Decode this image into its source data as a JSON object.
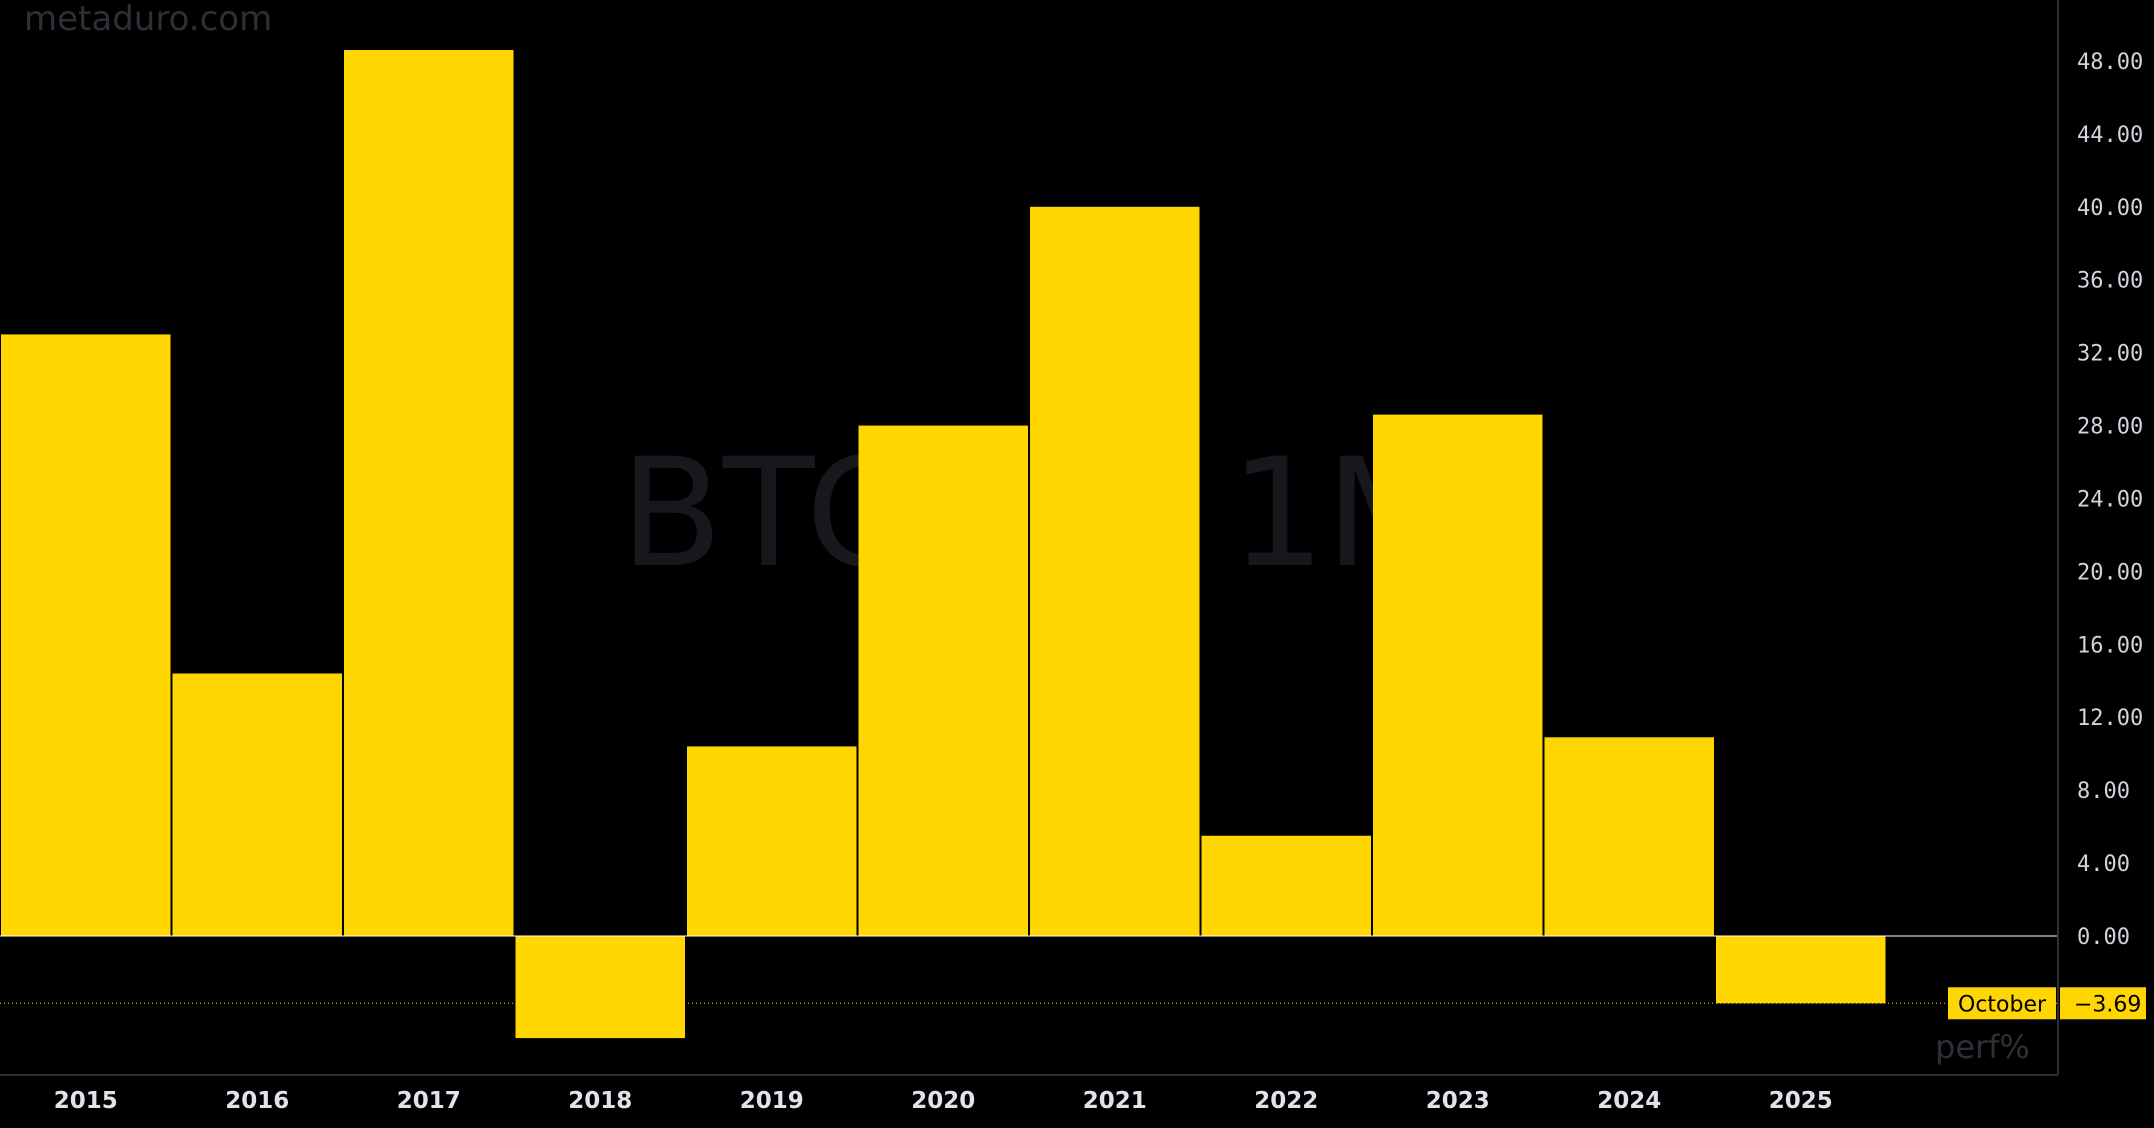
{
  "site": "metaduro.com",
  "watermark": {
    "left": "BTC",
    "right": "1M"
  },
  "series_label": "perf%",
  "colors": {
    "bar": "#FFD600",
    "background": "#000000",
    "axis_text": "#d1d4dc"
  },
  "last_value": {
    "label": "October",
    "value": "−3.69"
  },
  "chart_data": {
    "type": "bar",
    "categories": [
      "2015",
      "2016",
      "2017",
      "2018",
      "2019",
      "2020",
      "2021",
      "2022",
      "2023",
      "2024",
      "2025"
    ],
    "values": [
      33.0,
      14.4,
      48.6,
      -5.6,
      10.4,
      28.0,
      40.0,
      5.5,
      28.6,
      10.9,
      -3.69
    ],
    "yticks": [
      "48.00",
      "44.00",
      "40.00",
      "36.00",
      "32.00",
      "28.00",
      "24.00",
      "20.00",
      "16.00",
      "12.00",
      "8.00",
      "4.00",
      "0.00"
    ],
    "ylim": [
      -8,
      50
    ],
    "grid": false,
    "legend": "none"
  }
}
